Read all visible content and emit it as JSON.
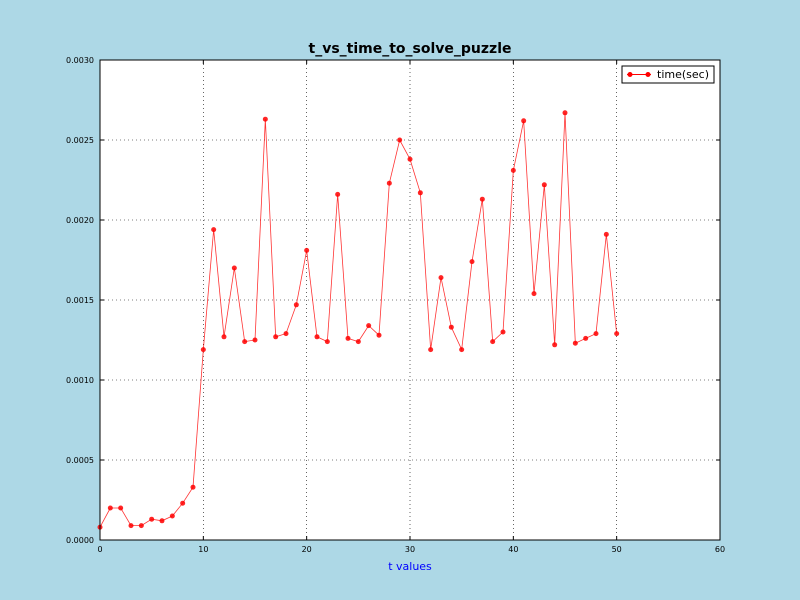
{
  "chart_data": {
    "type": "line",
    "title": "t_vs_time_to_solve_puzzle",
    "xlabel": "t values",
    "ylabel": "",
    "xlim": [
      0,
      60
    ],
    "ylim": [
      0,
      0.003
    ],
    "xticks": [
      "0",
      "10",
      "20",
      "30",
      "40",
      "50",
      "60"
    ],
    "yticks": [
      "0.0000",
      "0.0005",
      "0.0010",
      "0.0015",
      "0.0020",
      "0.0025",
      "0.0030"
    ],
    "grid": true,
    "legend_position": "top-right",
    "colors": {
      "series": "#ff0000",
      "background": "#add8e6",
      "plot_area": "#ffffff",
      "xlabel": "#0000ff"
    },
    "series": [
      {
        "name": "time(sec)",
        "x": [
          0,
          1,
          2,
          3,
          4,
          5,
          6,
          7,
          8,
          9,
          10,
          11,
          12,
          13,
          14,
          15,
          16,
          17,
          18,
          19,
          20,
          21,
          22,
          23,
          24,
          25,
          26,
          27,
          28,
          29,
          30,
          31,
          32,
          33,
          34,
          35,
          36,
          37,
          38,
          39,
          40,
          41,
          42,
          43,
          44,
          45,
          46,
          47,
          48,
          49,
          50
        ],
        "y": [
          8e-05,
          0.0002,
          0.0002,
          9e-05,
          9e-05,
          0.00013,
          0.00012,
          0.00015,
          0.00023,
          0.00033,
          0.00119,
          0.00194,
          0.00127,
          0.0017,
          0.00124,
          0.00125,
          0.00263,
          0.00127,
          0.00129,
          0.00147,
          0.00181,
          0.00127,
          0.00124,
          0.00216,
          0.00126,
          0.00124,
          0.00134,
          0.00128,
          0.00223,
          0.0025,
          0.00238,
          0.00217,
          0.00119,
          0.00164,
          0.00133,
          0.00119,
          0.00174,
          0.00213,
          0.00124,
          0.0013,
          0.00231,
          0.00262,
          0.00154,
          0.00222,
          0.00122,
          0.00267,
          0.00123,
          0.00126,
          0.00129,
          0.00191,
          0.00129
        ]
      }
    ]
  }
}
